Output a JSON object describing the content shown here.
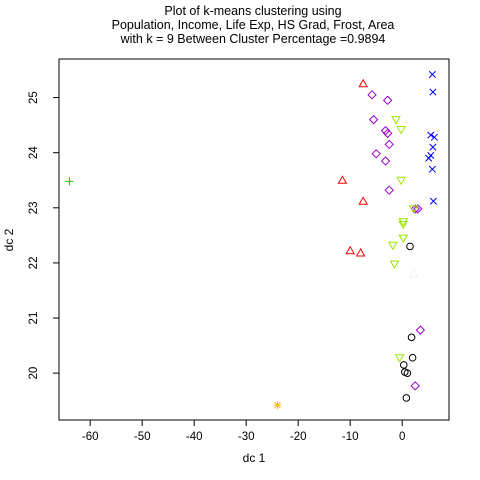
{
  "chart_data": {
    "type": "scatter",
    "title_lines": [
      "Plot of k-means clustering using",
      "Population, Income, Life Exp, HS Grad, Frost, Area",
      "with  k = 9 Between Cluster Percentage =0.9894"
    ],
    "xlabel": "dc 1",
    "ylabel": "dc 2",
    "xlim": [
      -66,
      9
    ],
    "ylim": [
      19.15,
      25.7
    ],
    "xticks": [
      -60,
      -50,
      -40,
      -30,
      -20,
      -10,
      0
    ],
    "yticks": [
      20,
      21,
      22,
      23,
      24,
      25
    ],
    "grid": false,
    "legend": "none",
    "series": [
      {
        "marker": "circle",
        "color": "#000000",
        "points": [
          [
            1.5,
            22.3
          ],
          [
            1.8,
            20.65
          ],
          [
            2.0,
            20.28
          ],
          [
            0.3,
            20.15
          ],
          [
            0.5,
            20.02
          ],
          [
            1.0,
            20.0
          ],
          [
            0.8,
            19.55
          ]
        ]
      },
      {
        "marker": "triangle-up",
        "color": "#ff0000",
        "points": [
          [
            -7.5,
            25.25
          ],
          [
            -11.5,
            23.5
          ],
          [
            -7.5,
            23.12
          ],
          [
            -10.0,
            22.22
          ],
          [
            -8.0,
            22.18
          ]
        ]
      },
      {
        "marker": "plus",
        "color": "#00cc00",
        "points": [
          [
            -64.0,
            23.48
          ]
        ]
      },
      {
        "marker": "cross",
        "color": "#0000ff",
        "points": [
          [
            5.8,
            25.42
          ],
          [
            5.9,
            25.1
          ],
          [
            5.5,
            24.32
          ],
          [
            6.2,
            24.28
          ],
          [
            5.9,
            24.1
          ],
          [
            5.5,
            23.95
          ],
          [
            5.1,
            23.9
          ],
          [
            5.8,
            23.7
          ],
          [
            6.0,
            23.12
          ]
        ]
      },
      {
        "marker": "diamond",
        "color": "#9900cc",
        "points": [
          [
            -5.8,
            25.05
          ],
          [
            -2.8,
            24.95
          ],
          [
            -5.5,
            24.6
          ],
          [
            -3.2,
            24.4
          ],
          [
            -2.8,
            24.35
          ],
          [
            -2.5,
            24.15
          ],
          [
            -5.0,
            23.98
          ],
          [
            -3.2,
            23.85
          ],
          [
            -2.5,
            23.32
          ],
          [
            2.5,
            22.98
          ],
          [
            3.0,
            22.98
          ],
          [
            3.5,
            20.78
          ],
          [
            2.5,
            19.77
          ]
        ]
      },
      {
        "marker": "triangle-down",
        "color": "#99e600",
        "points": [
          [
            -1.2,
            24.6
          ],
          [
            -0.2,
            24.42
          ],
          [
            -0.2,
            23.5
          ],
          [
            2.2,
            22.98
          ],
          [
            0.2,
            22.75
          ],
          [
            0.2,
            22.7
          ],
          [
            0.2,
            22.45
          ],
          [
            -1.8,
            22.32
          ],
          [
            -1.5,
            21.98
          ],
          [
            -0.5,
            20.28
          ]
        ]
      },
      {
        "marker": "asterisk",
        "color": "#ffbb00",
        "points": [
          [
            -24.0,
            19.42
          ]
        ]
      },
      {
        "marker": "triangle-up",
        "color": "#f2f2f2",
        "points": [
          [
            2.2,
            21.8
          ]
        ]
      }
    ]
  }
}
